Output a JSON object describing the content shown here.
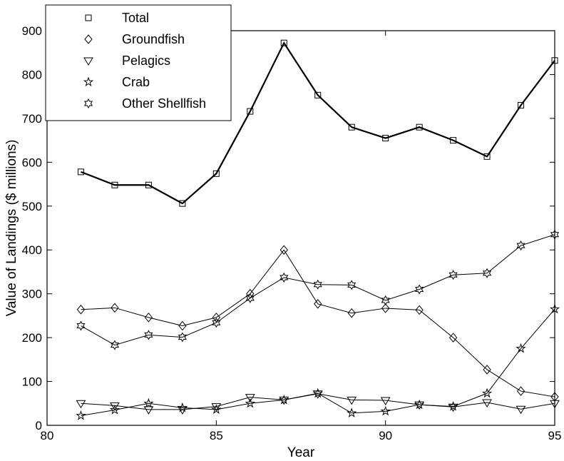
{
  "chart_data": {
    "type": "line",
    "title": "",
    "xlabel": "Year",
    "ylabel": "Value of Landings ($ millions)",
    "xlim": [
      80,
      95
    ],
    "ylim": [
      0,
      900
    ],
    "xticks": [
      80,
      85,
      90,
      95
    ],
    "yticks": [
      0,
      100,
      200,
      300,
      400,
      500,
      600,
      700,
      800,
      900
    ],
    "grid": false,
    "legend_position": "top-left",
    "x": [
      81,
      82,
      83,
      84,
      85,
      86,
      87,
      88,
      89,
      90,
      91,
      92,
      93,
      94,
      95
    ],
    "series": [
      {
        "name": "Total",
        "marker": "square",
        "line_width": 2.2,
        "values": [
          578,
          548,
          548,
          506,
          574,
          716,
          872,
          753,
          680,
          655,
          680,
          650,
          613,
          730,
          832
        ]
      },
      {
        "name": "Groundfish",
        "marker": "diamond",
        "line_width": 1,
        "values": [
          264,
          268,
          246,
          227,
          246,
          300,
          400,
          277,
          256,
          267,
          263,
          200,
          127,
          78,
          65
        ]
      },
      {
        "name": "Pelagics",
        "marker": "triangle-down",
        "line_width": 1,
        "values": [
          50,
          45,
          36,
          36,
          43,
          64,
          58,
          72,
          58,
          57,
          47,
          42,
          52,
          37,
          50
        ]
      },
      {
        "name": "Crab",
        "marker": "star",
        "line_width": 1,
        "values": [
          22,
          35,
          50,
          40,
          36,
          50,
          58,
          73,
          28,
          32,
          47,
          43,
          73,
          175,
          265
        ]
      },
      {
        "name": "Other Shellfish",
        "marker": "hexagram",
        "line_width": 1,
        "values": [
          227,
          183,
          206,
          201,
          234,
          290,
          337,
          321,
          320,
          285,
          310,
          343,
          347,
          410,
          435
        ]
      }
    ]
  }
}
